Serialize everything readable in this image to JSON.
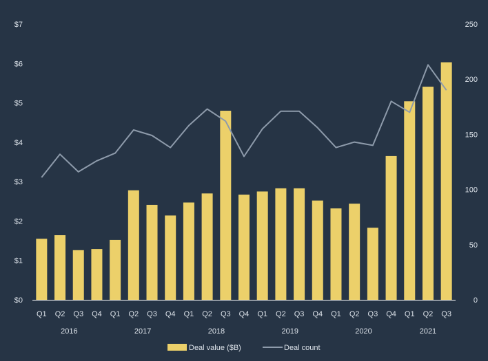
{
  "chart_data": {
    "type": "bar",
    "categories": [
      "Q1",
      "Q2",
      "Q3",
      "Q4",
      "Q1",
      "Q2",
      "Q3",
      "Q4",
      "Q1",
      "Q2",
      "Q3",
      "Q4",
      "Q1",
      "Q2",
      "Q3",
      "Q4",
      "Q1",
      "Q2",
      "Q3",
      "Q4",
      "Q1",
      "Q2",
      "Q3"
    ],
    "year_groups": [
      {
        "label": "2016",
        "start": 0,
        "end": 3
      },
      {
        "label": "2017",
        "start": 4,
        "end": 7
      },
      {
        "label": "2018",
        "start": 8,
        "end": 11
      },
      {
        "label": "2019",
        "start": 12,
        "end": 15
      },
      {
        "label": "2020",
        "start": 16,
        "end": 19
      },
      {
        "label": "2021",
        "start": 20,
        "end": 22
      }
    ],
    "series": [
      {
        "name": "Deal value ($B)",
        "kind": "bar",
        "axis": "left",
        "color": "#ECD06A",
        "values": [
          1.55,
          1.64,
          1.26,
          1.29,
          1.52,
          2.78,
          2.41,
          2.14,
          2.47,
          2.7,
          4.8,
          2.67,
          2.75,
          2.83,
          2.83,
          2.52,
          2.32,
          2.44,
          1.83,
          3.65,
          5.04,
          5.41,
          6.03
        ]
      },
      {
        "name": "Deal count",
        "kind": "line",
        "axis": "right",
        "color": "#8E9BAB",
        "values": [
          111,
          132,
          116,
          126,
          133,
          154,
          149,
          138,
          158,
          173,
          162,
          130,
          155,
          171,
          171,
          156,
          138,
          143,
          140,
          180,
          170,
          213,
          190
        ]
      }
    ],
    "y_left": {
      "min": 0,
      "max": 7,
      "ticks": [
        0,
        1,
        2,
        3,
        4,
        5,
        6,
        7
      ],
      "tick_labels": [
        "$0",
        "$1",
        "$2",
        "$3",
        "$4",
        "$5",
        "$6",
        "$7"
      ]
    },
    "y_right": {
      "min": 0,
      "max": 250,
      "ticks": [
        0,
        50,
        100,
        150,
        200,
        250
      ],
      "tick_labels": [
        "0",
        "50",
        "100",
        "150",
        "200",
        "250"
      ]
    },
    "grid": false,
    "legend": {
      "position": "bottom",
      "items": [
        {
          "label": "Deal value ($B)",
          "swatch": "bar",
          "color": "#ECD06A"
        },
        {
          "label": "Deal count",
          "swatch": "line",
          "color": "#8E9BAB"
        }
      ]
    },
    "colors": {
      "background": "#263445",
      "text": "#DDE3EA",
      "axis": "#FFFFFF"
    }
  }
}
